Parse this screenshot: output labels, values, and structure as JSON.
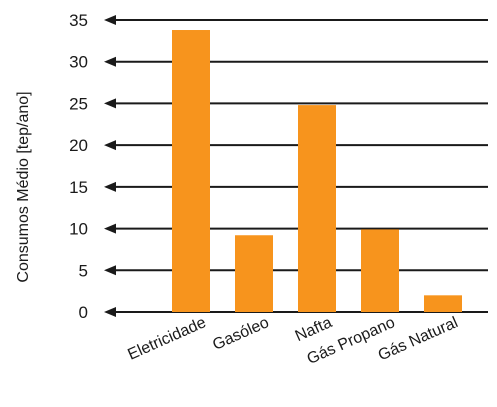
{
  "chart_data": {
    "type": "bar",
    "title": "",
    "xlabel": "",
    "ylabel": "Consumos Médio [tep/ano]",
    "categories": [
      "Eletricidade",
      "Gasóleo",
      "Nafta",
      "Gás Propano",
      "Gás Natural"
    ],
    "values": [
      33.8,
      9.2,
      24.8,
      9.9,
      2.0
    ],
    "ylim": [
      0,
      35
    ],
    "yticks": [
      0,
      5,
      10,
      15,
      20,
      25,
      30,
      35
    ],
    "grid": true,
    "legend": "none",
    "colors": {
      "bar": "#f7941d",
      "gridline": "#1a1a1a"
    }
  }
}
